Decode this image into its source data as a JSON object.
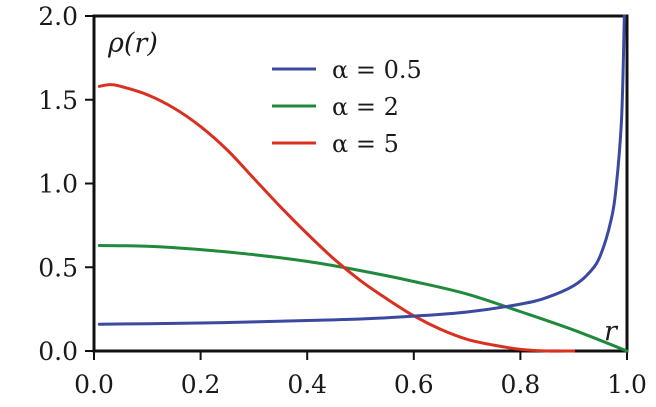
{
  "chart_data": {
    "type": "line",
    "title": "",
    "xlabel": "r",
    "ylabel": "ρ(r)",
    "xlim": [
      0.0,
      1.0
    ],
    "ylim": [
      0.0,
      2.0
    ],
    "grid": false,
    "legend_position": "top-center",
    "x_ticks": [
      "0.0",
      "0.2",
      "0.4",
      "0.6",
      "0.8",
      "1.0"
    ],
    "y_ticks": [
      "0.0",
      "0.5",
      "1.0",
      "1.5",
      "2.0"
    ],
    "series": [
      {
        "name": "α = 0.5",
        "color": "#3b4aa0",
        "x": [
          0.01,
          0.1,
          0.2,
          0.3,
          0.4,
          0.5,
          0.6,
          0.7,
          0.8,
          0.85,
          0.9,
          0.93,
          0.95,
          0.97,
          0.98,
          0.99,
          0.995
        ],
        "y": [
          0.16,
          0.163,
          0.167,
          0.174,
          0.182,
          0.191,
          0.208,
          0.233,
          0.28,
          0.32,
          0.39,
          0.47,
          0.57,
          0.78,
          0.99,
          1.4,
          2.0
        ]
      },
      {
        "name": "α = 2",
        "color": "#1f8a3b",
        "x": [
          0.01,
          0.1,
          0.2,
          0.3,
          0.4,
          0.5,
          0.6,
          0.7,
          0.8,
          0.9,
          1.0
        ],
        "y": [
          0.63,
          0.625,
          0.605,
          0.575,
          0.535,
          0.48,
          0.415,
          0.34,
          0.235,
          0.125,
          0.0
        ]
      },
      {
        "name": "α = 5",
        "color": "#d9301f",
        "x": [
          0.01,
          0.03,
          0.05,
          0.1,
          0.15,
          0.2,
          0.25,
          0.3,
          0.35,
          0.4,
          0.45,
          0.5,
          0.55,
          0.6,
          0.65,
          0.7,
          0.75,
          0.8,
          0.85,
          0.9
        ],
        "y": [
          1.58,
          1.59,
          1.58,
          1.53,
          1.45,
          1.34,
          1.2,
          1.03,
          0.86,
          0.7,
          0.55,
          0.42,
          0.31,
          0.21,
          0.13,
          0.07,
          0.035,
          0.01,
          0.0,
          0.0
        ]
      }
    ]
  }
}
